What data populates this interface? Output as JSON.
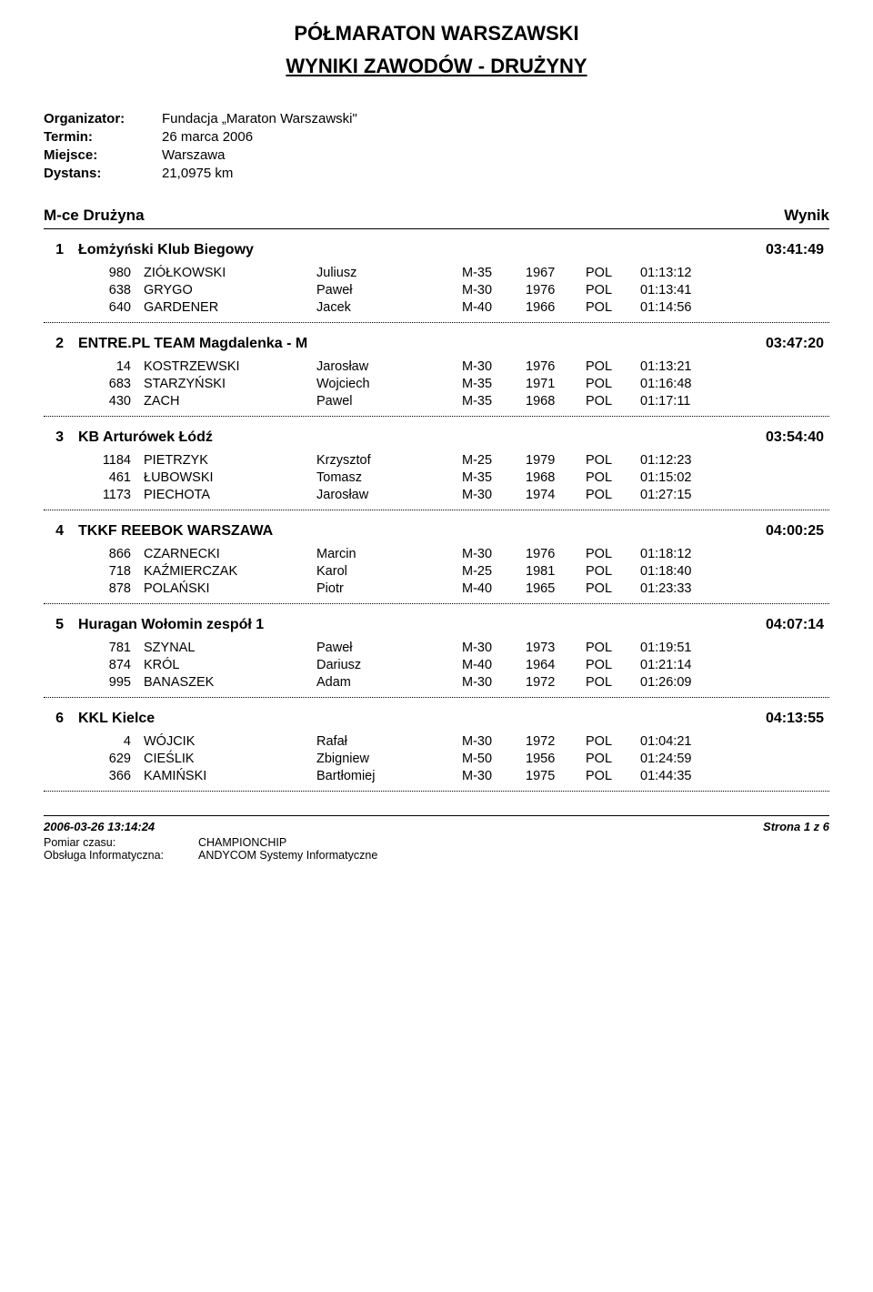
{
  "header": {
    "title_main": "PÓŁMARATON WARSZAWSKI",
    "title_sub": "WYNIKI ZAWODÓW - DRUŻYNY"
  },
  "meta": {
    "organizer_label": "Organizator:",
    "organizer_value": "Fundacja „Maraton Warszawski\"",
    "date_label": "Termin:",
    "date_value": "26 marca 2006",
    "place_label": "Miejsce:",
    "place_value": "Warszawa",
    "distance_label": "Dystans:",
    "distance_value": "21,0975 km"
  },
  "columns": {
    "rank_team": "M-ce  Drużyna",
    "result": "Wynik"
  },
  "teams": [
    {
      "rank": "1",
      "name": "Łomżyński Klub Biegowy",
      "time": "03:41:49",
      "members": [
        {
          "bib": "980",
          "last": "ZIÓŁKOWSKI",
          "first": "Juliusz",
          "cat": "M-35",
          "year": "1967",
          "nat": "POL",
          "t": "01:13:12"
        },
        {
          "bib": "638",
          "last": "GRYGO",
          "first": "Paweł",
          "cat": "M-30",
          "year": "1976",
          "nat": "POL",
          "t": "01:13:41"
        },
        {
          "bib": "640",
          "last": "GARDENER",
          "first": "Jacek",
          "cat": "M-40",
          "year": "1966",
          "nat": "POL",
          "t": "01:14:56"
        }
      ]
    },
    {
      "rank": "2",
      "name": "ENTRE.PL TEAM Magdalenka - M",
      "time": "03:47:20",
      "members": [
        {
          "bib": "14",
          "last": "KOSTRZEWSKI",
          "first": "Jarosław",
          "cat": "M-30",
          "year": "1976",
          "nat": "POL",
          "t": "01:13:21"
        },
        {
          "bib": "683",
          "last": "STARZYŃSKI",
          "first": "Wojciech",
          "cat": "M-35",
          "year": "1971",
          "nat": "POL",
          "t": "01:16:48"
        },
        {
          "bib": "430",
          "last": "ZACH",
          "first": "Pawel",
          "cat": "M-35",
          "year": "1968",
          "nat": "POL",
          "t": "01:17:11"
        }
      ]
    },
    {
      "rank": "3",
      "name": "KB Arturówek Łódź",
      "time": "03:54:40",
      "members": [
        {
          "bib": "1184",
          "last": "PIETRZYK",
          "first": "Krzysztof",
          "cat": "M-25",
          "year": "1979",
          "nat": "POL",
          "t": "01:12:23"
        },
        {
          "bib": "461",
          "last": "ŁUBOWSKI",
          "first": "Tomasz",
          "cat": "M-35",
          "year": "1968",
          "nat": "POL",
          "t": "01:15:02"
        },
        {
          "bib": "1173",
          "last": "PIECHOTA",
          "first": "Jarosław",
          "cat": "M-30",
          "year": "1974",
          "nat": "POL",
          "t": "01:27:15"
        }
      ]
    },
    {
      "rank": "4",
      "name": "TKKF REEBOK WARSZAWA",
      "time": "04:00:25",
      "members": [
        {
          "bib": "866",
          "last": "CZARNECKI",
          "first": "Marcin",
          "cat": "M-30",
          "year": "1976",
          "nat": "POL",
          "t": "01:18:12"
        },
        {
          "bib": "718",
          "last": "KAŹMIERCZAK",
          "first": "Karol",
          "cat": "M-25",
          "year": "1981",
          "nat": "POL",
          "t": "01:18:40"
        },
        {
          "bib": "878",
          "last": "POLAŃSKI",
          "first": "Piotr",
          "cat": "M-40",
          "year": "1965",
          "nat": "POL",
          "t": "01:23:33"
        }
      ]
    },
    {
      "rank": "5",
      "name": "Huragan Wołomin zespół 1",
      "time": "04:07:14",
      "members": [
        {
          "bib": "781",
          "last": "SZYNAL",
          "first": "Paweł",
          "cat": "M-30",
          "year": "1973",
          "nat": "POL",
          "t": "01:19:51"
        },
        {
          "bib": "874",
          "last": "KRÓL",
          "first": "Dariusz",
          "cat": "M-40",
          "year": "1964",
          "nat": "POL",
          "t": "01:21:14"
        },
        {
          "bib": "995",
          "last": "BANASZEK",
          "first": "Adam",
          "cat": "M-30",
          "year": "1972",
          "nat": "POL",
          "t": "01:26:09"
        }
      ]
    },
    {
      "rank": "6",
      "name": "KKL Kielce",
      "time": "04:13:55",
      "members": [
        {
          "bib": "4",
          "last": "WÓJCIK",
          "first": "Rafał",
          "cat": "M-30",
          "year": "1972",
          "nat": "POL",
          "t": "01:04:21"
        },
        {
          "bib": "629",
          "last": "CIEŚLIK",
          "first": "Zbigniew",
          "cat": "M-50",
          "year": "1956",
          "nat": "POL",
          "t": "01:24:59"
        },
        {
          "bib": "366",
          "last": "KAMIŃSKI",
          "first": "Bartłomiej",
          "cat": "M-30",
          "year": "1975",
          "nat": "POL",
          "t": "01:44:35"
        }
      ]
    }
  ],
  "footer": {
    "timestamp": "2006-03-26 13:14:24",
    "page": "Strona 1 z 6",
    "timing_label": "Pomiar czasu:",
    "timing_value": "CHAMPIONCHIP",
    "it_label": "Obsługa Informatyczna:",
    "it_value": "ANDYCOM Systemy Informatyczne"
  }
}
